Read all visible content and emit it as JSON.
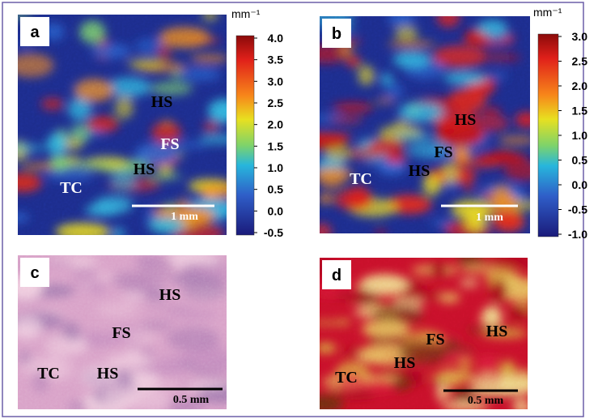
{
  "panels": [
    {
      "label": "a",
      "annotations": [
        "HS",
        "FS",
        "HS",
        "TC"
      ],
      "scale_bar": "1 mm",
      "colorbar": {
        "unit": "mm⁻¹",
        "ticks": [
          "4.0",
          "3.5",
          "3.0",
          "2.5",
          "2.0",
          "1.5",
          "1.0",
          "0.5",
          "0.0",
          "-0.5"
        ]
      }
    },
    {
      "label": "b",
      "annotations": [
        "HS",
        "FS",
        "HS",
        "TC"
      ],
      "scale_bar": "1 mm",
      "colorbar": {
        "unit": "mm⁻¹",
        "ticks": [
          "3.0",
          "2.5",
          "2.0",
          "1.5",
          "1.0",
          "0.5",
          "0.0",
          "-0.5",
          "-1.0"
        ]
      }
    },
    {
      "label": "c",
      "annotations": [
        "HS",
        "FS",
        "HS",
        "TC"
      ],
      "scale_bar": "0.5 mm"
    },
    {
      "label": "d",
      "annotations": [
        "FS",
        "HS",
        "HS",
        "TC"
      ],
      "scale_bar": "0.5 mm"
    }
  ]
}
